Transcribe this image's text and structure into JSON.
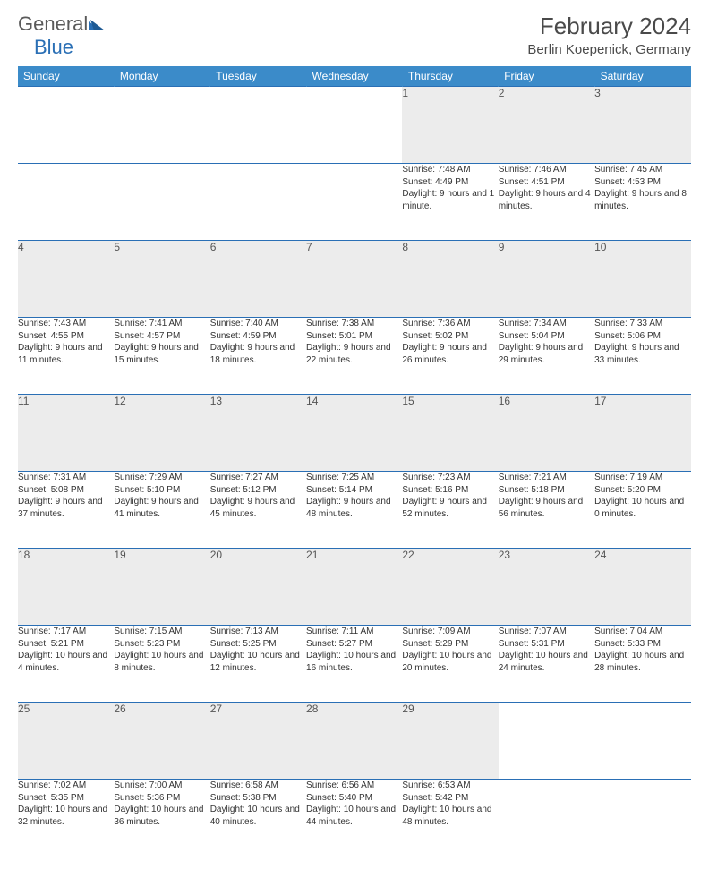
{
  "logo": {
    "text1": "General",
    "text2": "Blue"
  },
  "title": "February 2024",
  "location": "Berlin Koepenick, Germany",
  "colors": {
    "header_bg": "#3b8bc9",
    "header_text": "#ffffff",
    "border": "#2a6fb5",
    "daynum_bg": "#ececec",
    "text": "#333333",
    "logo_gray": "#5a5a5a",
    "logo_blue": "#2a6fb5"
  },
  "weekdays": [
    "Sunday",
    "Monday",
    "Tuesday",
    "Wednesday",
    "Thursday",
    "Friday",
    "Saturday"
  ],
  "weeks": [
    [
      null,
      null,
      null,
      null,
      {
        "d": "1",
        "sr": "7:48 AM",
        "ss": "4:49 PM",
        "dl": "9 hours and 1 minute."
      },
      {
        "d": "2",
        "sr": "7:46 AM",
        "ss": "4:51 PM",
        "dl": "9 hours and 4 minutes."
      },
      {
        "d": "3",
        "sr": "7:45 AM",
        "ss": "4:53 PM",
        "dl": "9 hours and 8 minutes."
      }
    ],
    [
      {
        "d": "4",
        "sr": "7:43 AM",
        "ss": "4:55 PM",
        "dl": "9 hours and 11 minutes."
      },
      {
        "d": "5",
        "sr": "7:41 AM",
        "ss": "4:57 PM",
        "dl": "9 hours and 15 minutes."
      },
      {
        "d": "6",
        "sr": "7:40 AM",
        "ss": "4:59 PM",
        "dl": "9 hours and 18 minutes."
      },
      {
        "d": "7",
        "sr": "7:38 AM",
        "ss": "5:01 PM",
        "dl": "9 hours and 22 minutes."
      },
      {
        "d": "8",
        "sr": "7:36 AM",
        "ss": "5:02 PM",
        "dl": "9 hours and 26 minutes."
      },
      {
        "d": "9",
        "sr": "7:34 AM",
        "ss": "5:04 PM",
        "dl": "9 hours and 29 minutes."
      },
      {
        "d": "10",
        "sr": "7:33 AM",
        "ss": "5:06 PM",
        "dl": "9 hours and 33 minutes."
      }
    ],
    [
      {
        "d": "11",
        "sr": "7:31 AM",
        "ss": "5:08 PM",
        "dl": "9 hours and 37 minutes."
      },
      {
        "d": "12",
        "sr": "7:29 AM",
        "ss": "5:10 PM",
        "dl": "9 hours and 41 minutes."
      },
      {
        "d": "13",
        "sr": "7:27 AM",
        "ss": "5:12 PM",
        "dl": "9 hours and 45 minutes."
      },
      {
        "d": "14",
        "sr": "7:25 AM",
        "ss": "5:14 PM",
        "dl": "9 hours and 48 minutes."
      },
      {
        "d": "15",
        "sr": "7:23 AM",
        "ss": "5:16 PM",
        "dl": "9 hours and 52 minutes."
      },
      {
        "d": "16",
        "sr": "7:21 AM",
        "ss": "5:18 PM",
        "dl": "9 hours and 56 minutes."
      },
      {
        "d": "17",
        "sr": "7:19 AM",
        "ss": "5:20 PM",
        "dl": "10 hours and 0 minutes."
      }
    ],
    [
      {
        "d": "18",
        "sr": "7:17 AM",
        "ss": "5:21 PM",
        "dl": "10 hours and 4 minutes."
      },
      {
        "d": "19",
        "sr": "7:15 AM",
        "ss": "5:23 PM",
        "dl": "10 hours and 8 minutes."
      },
      {
        "d": "20",
        "sr": "7:13 AM",
        "ss": "5:25 PM",
        "dl": "10 hours and 12 minutes."
      },
      {
        "d": "21",
        "sr": "7:11 AM",
        "ss": "5:27 PM",
        "dl": "10 hours and 16 minutes."
      },
      {
        "d": "22",
        "sr": "7:09 AM",
        "ss": "5:29 PM",
        "dl": "10 hours and 20 minutes."
      },
      {
        "d": "23",
        "sr": "7:07 AM",
        "ss": "5:31 PM",
        "dl": "10 hours and 24 minutes."
      },
      {
        "d": "24",
        "sr": "7:04 AM",
        "ss": "5:33 PM",
        "dl": "10 hours and 28 minutes."
      }
    ],
    [
      {
        "d": "25",
        "sr": "7:02 AM",
        "ss": "5:35 PM",
        "dl": "10 hours and 32 minutes."
      },
      {
        "d": "26",
        "sr": "7:00 AM",
        "ss": "5:36 PM",
        "dl": "10 hours and 36 minutes."
      },
      {
        "d": "27",
        "sr": "6:58 AM",
        "ss": "5:38 PM",
        "dl": "10 hours and 40 minutes."
      },
      {
        "d": "28",
        "sr": "6:56 AM",
        "ss": "5:40 PM",
        "dl": "10 hours and 44 minutes."
      },
      {
        "d": "29",
        "sr": "6:53 AM",
        "ss": "5:42 PM",
        "dl": "10 hours and 48 minutes."
      },
      null,
      null
    ]
  ],
  "labels": {
    "sunrise": "Sunrise:",
    "sunset": "Sunset:",
    "daylight": "Daylight:"
  }
}
